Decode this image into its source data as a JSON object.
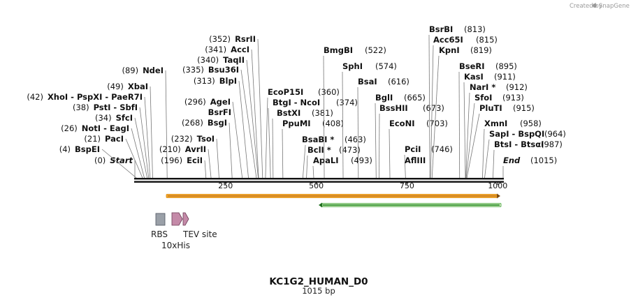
{
  "title": "KC1G2_HUMAN_D0",
  "length_label": "1015 bp",
  "sequence_length": 1015,
  "credit_prefix": "Created by",
  "credit_brand": "SnapGene",
  "colors": {
    "backbone": "#111111",
    "orange_feature": "#f4a62a",
    "green_feature": "#33aa33",
    "rbs": "#9aa0a8",
    "his_tag": "#c27ba0",
    "tev": "#c27ba0"
  },
  "axis": {
    "ticks": [
      250,
      500,
      750,
      1000
    ]
  },
  "features": {
    "orange_arrow": {
      "start": 91,
      "end": 1015,
      "direction": "forward"
    },
    "green_arrow": {
      "start": 512,
      "end": 1015,
      "direction": "reverse"
    },
    "small": [
      {
        "name": "RBS",
        "type": "box"
      },
      {
        "name": "10xHis",
        "type": "arrow"
      },
      {
        "name": "TEV site",
        "type": "arrow"
      }
    ]
  },
  "sites": [
    {
      "pos": "(0)",
      "text": "Start",
      "loc": 0,
      "style": "italic"
    },
    {
      "pos": "(4)",
      "text": "BspEI",
      "loc": 4
    },
    {
      "pos": "(21)",
      "text": "PacI",
      "loc": 21
    },
    {
      "pos": "(26)",
      "text": "NotI  - EagI",
      "loc": 26
    },
    {
      "pos": "(34)",
      "text": "SfcI",
      "loc": 34
    },
    {
      "pos": "(38)",
      "text": "PstI  - SbfI",
      "loc": 38
    },
    {
      "pos": "(42)",
      "text": "XhoI  - PspXI  - PaeR7I",
      "loc": 42
    },
    {
      "pos": "(49)",
      "text": "XbaI",
      "loc": 49
    },
    {
      "pos": "(89)",
      "text": "NdeI",
      "loc": 89
    },
    {
      "pos": "(196)",
      "text": "EciI",
      "loc": 196
    },
    {
      "pos": "(210)",
      "text": "AvrII",
      "loc": 210
    },
    {
      "pos": "(232)",
      "text": "TsoI",
      "loc": 232
    },
    {
      "pos": "(268)",
      "text": "BsgI",
      "loc": 268
    },
    {
      "pos": "(296)",
      "text": "AgeI",
      "loc": 296
    },
    {
      "pos": "",
      "text": "BsrFI",
      "loc": 296
    },
    {
      "pos": "(313)",
      "text": "BlpI",
      "loc": 313
    },
    {
      "pos": "(335)",
      "text": "Bsu36I",
      "loc": 335
    },
    {
      "pos": "(340)",
      "text": "TaqII",
      "loc": 340
    },
    {
      "pos": "(341)",
      "text": "AccI",
      "loc": 341
    },
    {
      "pos": "(352)",
      "text": "RsrII",
      "loc": 352
    },
    {
      "pos": "",
      "text": "EcoP15I",
      "loc": 360
    },
    {
      "pos": "(360)",
      "text": "",
      "loc": 360
    },
    {
      "pos": "",
      "text": "BtgI  - NcoI",
      "loc": 374
    },
    {
      "pos": "(374)",
      "text": "",
      "loc": 374
    },
    {
      "pos": "",
      "text": "BstXI",
      "loc": 381
    },
    {
      "pos": "(381)",
      "text": "",
      "loc": 381
    },
    {
      "pos": "",
      "text": "PpuMI",
      "loc": 408
    },
    {
      "pos": "(408)",
      "text": "",
      "loc": 408
    },
    {
      "pos": "",
      "text": "BsaBI *",
      "loc": 463
    },
    {
      "pos": "(463)",
      "text": "",
      "loc": 463
    },
    {
      "pos": "",
      "text": "BclI *",
      "loc": 473
    },
    {
      "pos": "(473)",
      "text": "",
      "loc": 473
    },
    {
      "pos": "",
      "text": "ApaLI",
      "loc": 493
    },
    {
      "pos": "(493)",
      "text": "",
      "loc": 493
    },
    {
      "pos": "",
      "text": "BmgBI",
      "loc": 522
    },
    {
      "pos": "(522)",
      "text": "",
      "loc": 522
    },
    {
      "pos": "",
      "text": "SphI",
      "loc": 574
    },
    {
      "pos": "(574)",
      "text": "",
      "loc": 574
    },
    {
      "pos": "",
      "text": "BsaI",
      "loc": 616
    },
    {
      "pos": "(616)",
      "text": "",
      "loc": 616
    },
    {
      "pos": "",
      "text": "BglI",
      "loc": 665
    },
    {
      "pos": "(665)",
      "text": "",
      "loc": 665
    },
    {
      "pos": "",
      "text": "BssHII",
      "loc": 673
    },
    {
      "pos": "(673)",
      "text": "",
      "loc": 673
    },
    {
      "pos": "",
      "text": "EcoNI",
      "loc": 703
    },
    {
      "pos": "(703)",
      "text": "",
      "loc": 703
    },
    {
      "pos": "",
      "text": "PciI",
      "loc": 746
    },
    {
      "pos": "(746)",
      "text": "",
      "loc": 746
    },
    {
      "pos": "",
      "text": "AflIII",
      "loc": 746
    },
    {
      "pos": "",
      "text": "BsrBI",
      "loc": 813
    },
    {
      "pos": "(813)",
      "text": "",
      "loc": 813
    },
    {
      "pos": "",
      "text": "Acc65I",
      "loc": 815
    },
    {
      "pos": "(815)",
      "text": "",
      "loc": 815
    },
    {
      "pos": "",
      "text": "KpnI",
      "loc": 819
    },
    {
      "pos": "(819)",
      "text": "",
      "loc": 819
    },
    {
      "pos": "",
      "text": "BseRI",
      "loc": 895
    },
    {
      "pos": "(895)",
      "text": "",
      "loc": 895
    },
    {
      "pos": "",
      "text": "KasI",
      "loc": 911
    },
    {
      "pos": "(911)",
      "text": "",
      "loc": 911
    },
    {
      "pos": "",
      "text": "NarI *",
      "loc": 912
    },
    {
      "pos": "(912)",
      "text": "",
      "loc": 912
    },
    {
      "pos": "",
      "text": "SfoI",
      "loc": 913
    },
    {
      "pos": "(913)",
      "text": "",
      "loc": 913
    },
    {
      "pos": "",
      "text": "PluTI",
      "loc": 915
    },
    {
      "pos": "(915)",
      "text": "",
      "loc": 915
    },
    {
      "pos": "",
      "text": "XmnI",
      "loc": 958
    },
    {
      "pos": "(958)",
      "text": "",
      "loc": 958
    },
    {
      "pos": "",
      "text": "SapI  - BspQI",
      "loc": 964
    },
    {
      "pos": "(964)",
      "text": "",
      "loc": 964
    },
    {
      "pos": "",
      "text": "BtsI  - BtsαI",
      "loc": 987
    },
    {
      "pos": "(987)",
      "text": "",
      "loc": 987
    },
    {
      "pos": "",
      "text": "End",
      "loc": 1015,
      "style": "italic"
    },
    {
      "pos": "(1015)",
      "text": "",
      "loc": 1015
    }
  ]
}
